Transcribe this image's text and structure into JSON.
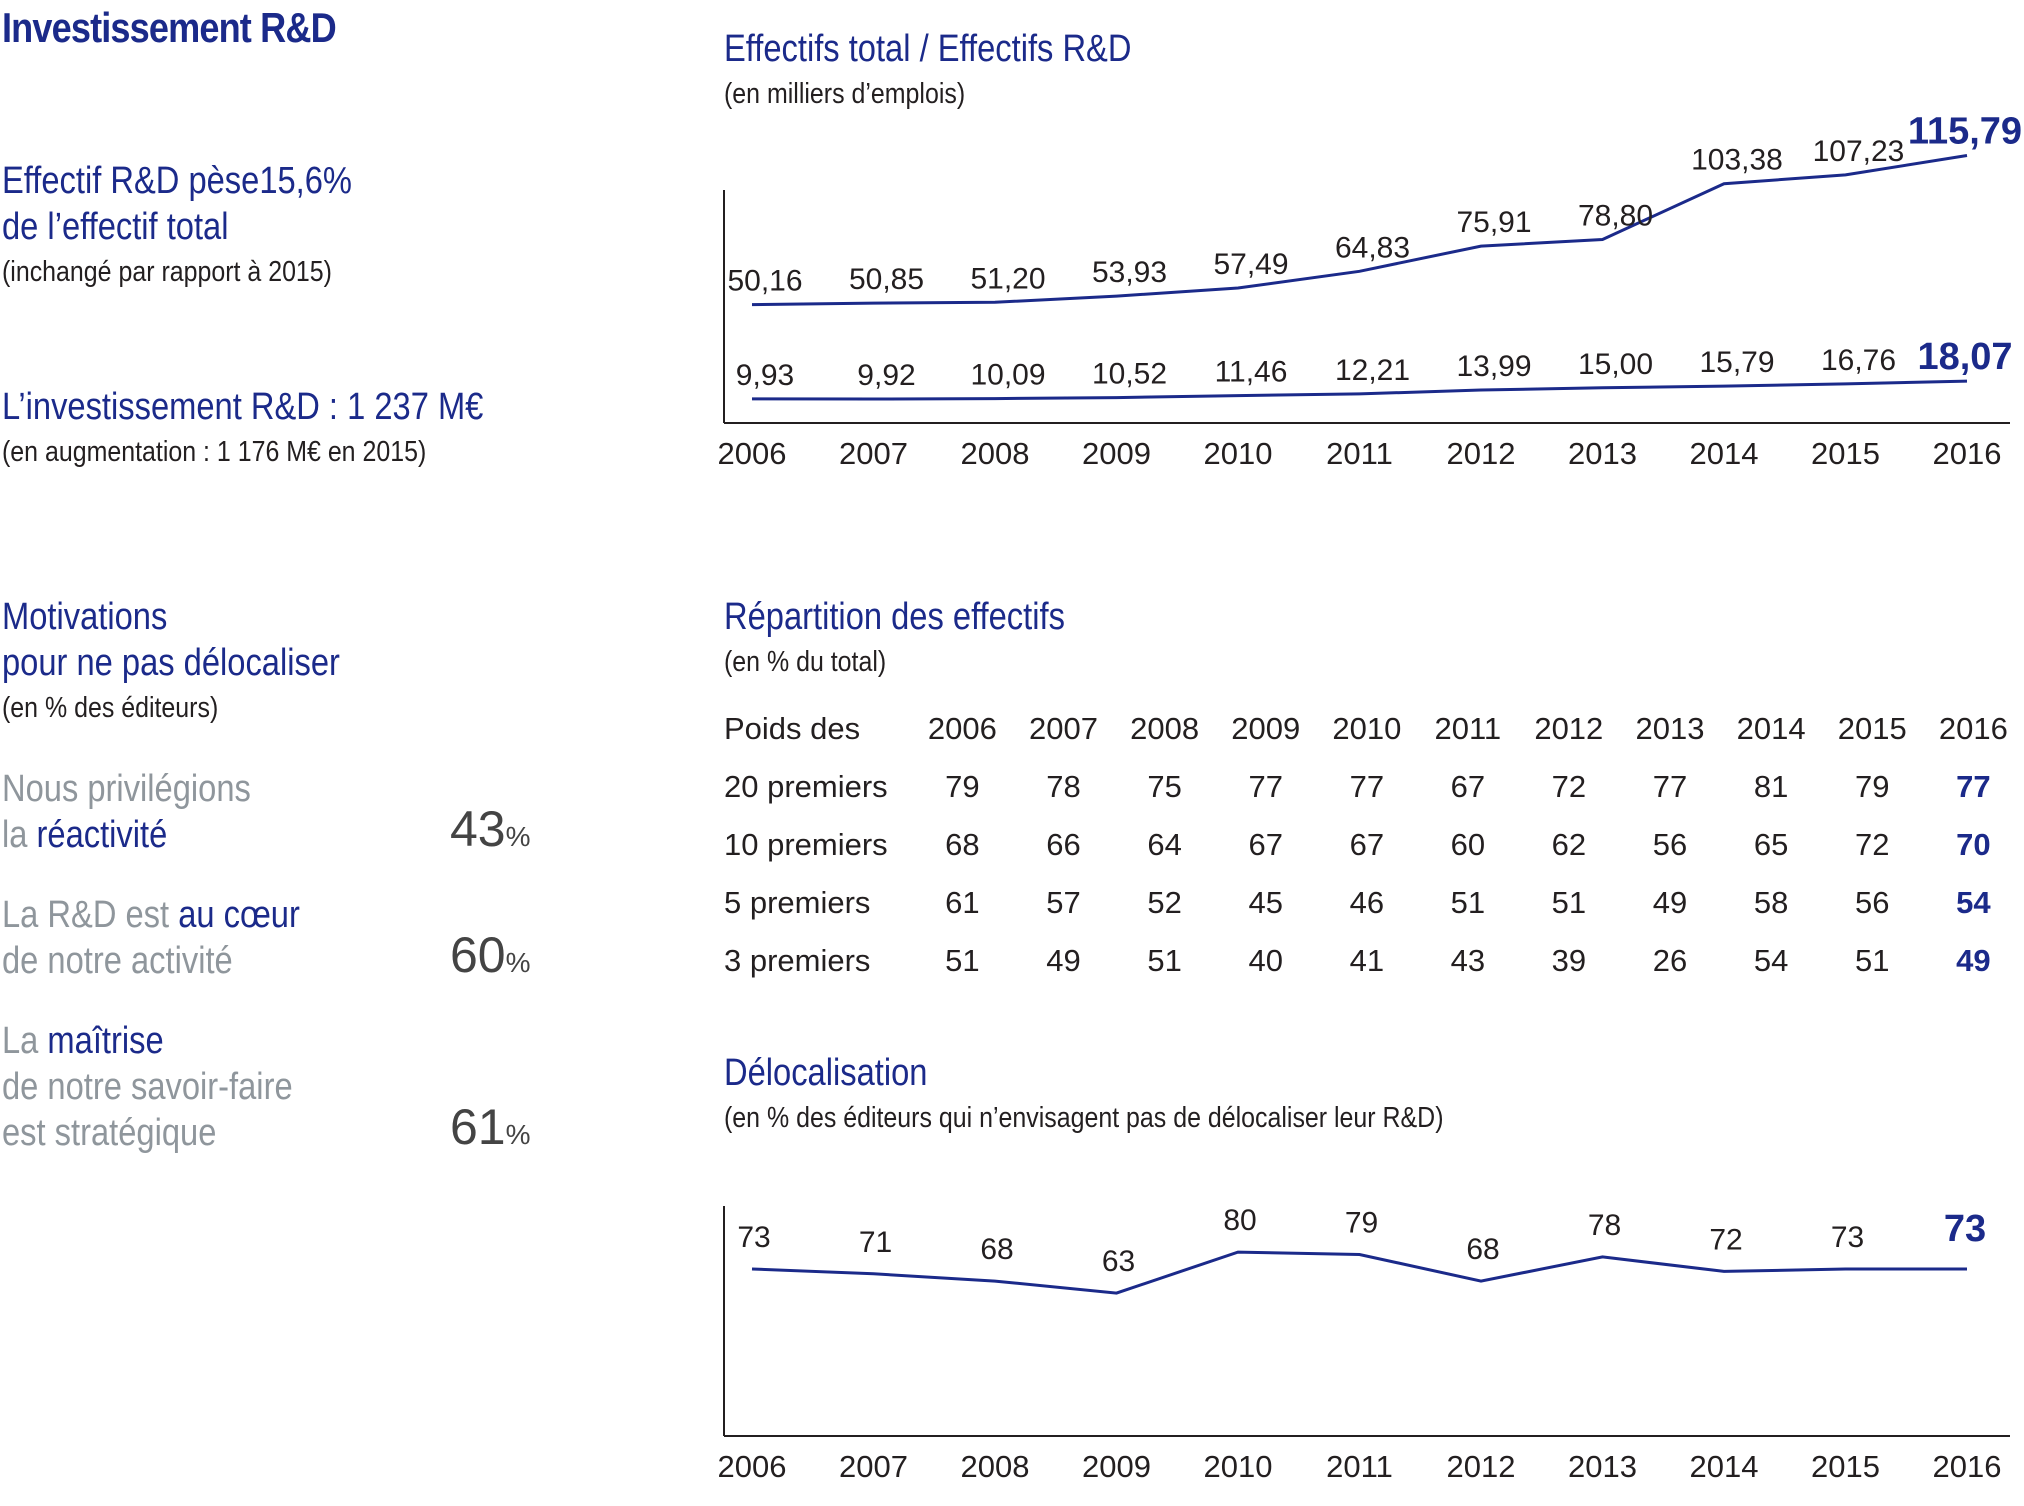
{
  "header": {
    "title": "Investissement R&D"
  },
  "left": {
    "kpi1": {
      "line1": "Effectif R&D pèse15,6%",
      "line2": "de l’effectif total",
      "note": "(inchangé par rapport à 2015)"
    },
    "kpi2": {
      "title": "L’investissement R&D : 1 237 M€",
      "note": "(en augmentation : 1 176 M€ en 2015)"
    },
    "motivations": {
      "line1": "Motivations",
      "line2": "pour ne pas délocaliser",
      "note": "(en % des éditeurs)",
      "items": [
        {
          "a": "Nous privilégions",
          "b1": "la ",
          "b2": "réactivité",
          "c1": "",
          "c2": "",
          "value": "43",
          "unit": "%"
        },
        {
          "a1": "La R&D est ",
          "a2": "au cœur",
          "b": "de notre activité",
          "value": "60",
          "unit": "%"
        },
        {
          "a1": "La ",
          "a2": "maîtrise",
          "b": "de notre savoir-faire",
          "c": "est stratégique",
          "value": "61",
          "unit": "%"
        }
      ]
    }
  },
  "colors": {
    "navy": "#1b2a8a",
    "grey": "#8f969c",
    "line": "#1b2a8a",
    "axis": "#231f20"
  },
  "chart_data": [
    {
      "type": "line",
      "title": "Effectifs total / Effectifs R&D",
      "subtitle": "(en milliers d’emplois)",
      "categories": [
        "2006",
        "2007",
        "2008",
        "2009",
        "2010",
        "2011",
        "2012",
        "2013",
        "2014",
        "2015",
        "2016"
      ],
      "series": [
        {
          "values": [
            50.16,
            50.85,
            51.2,
            53.93,
            57.49,
            64.83,
            75.91,
            78.8,
            103.38,
            107.23,
            115.79
          ],
          "labels": [
            "50,16",
            "50,85",
            "51,20",
            "53,93",
            "57,49",
            "64,83",
            "75,91",
            "78,80",
            "103,38",
            "107,23",
            "115,79"
          ]
        },
        {
          "values": [
            9.93,
            9.92,
            10.09,
            10.52,
            11.46,
            12.21,
            13.99,
            15.0,
            15.79,
            16.76,
            18.07
          ],
          "labels": [
            "9,93",
            "9,92",
            "10,09",
            "10,52",
            "11,46",
            "12,21",
            "13,99",
            "15,00",
            "15,79",
            "16,76",
            "18,07"
          ]
        }
      ],
      "grid": false
    },
    {
      "type": "table",
      "title": "Répartition des effectifs",
      "subtitle": "(en % du total)",
      "header_label": "Poids des",
      "columns": [
        "2006",
        "2007",
        "2008",
        "2009",
        "2010",
        "2011",
        "2012",
        "2013",
        "2014",
        "2015",
        "2016"
      ],
      "rows": [
        {
          "label": "20 premiers",
          "values": [
            "79",
            "78",
            "75",
            "77",
            "77",
            "67",
            "72",
            "77",
            "81",
            "79",
            "77"
          ]
        },
        {
          "label": "10 premiers",
          "values": [
            "68",
            "66",
            "64",
            "67",
            "67",
            "60",
            "62",
            "56",
            "65",
            "72",
            "70"
          ]
        },
        {
          "label": "5 premiers",
          "values": [
            "61",
            "57",
            "52",
            "45",
            "46",
            "51",
            "51",
            "49",
            "58",
            "56",
            "54"
          ]
        },
        {
          "label": "3 premiers",
          "values": [
            "51",
            "49",
            "51",
            "40",
            "41",
            "43",
            "39",
            "26",
            "54",
            "51",
            "49"
          ]
        }
      ]
    },
    {
      "type": "line",
      "title": "Délocalisation",
      "subtitle": "(en % des éditeurs qui n’envisagent pas de délocaliser leur R&D)",
      "categories": [
        "2006",
        "2007",
        "2008",
        "2009",
        "2010",
        "2011",
        "2012",
        "2013",
        "2014",
        "2015",
        "2016"
      ],
      "series": [
        {
          "values": [
            73,
            71,
            68,
            63,
            80,
            79,
            68,
            78,
            72,
            73,
            73
          ],
          "labels": [
            "73",
            "71",
            "68",
            "63",
            "80",
            "79",
            "68",
            "78",
            "72",
            "73",
            "73"
          ]
        }
      ],
      "grid": false
    }
  ]
}
